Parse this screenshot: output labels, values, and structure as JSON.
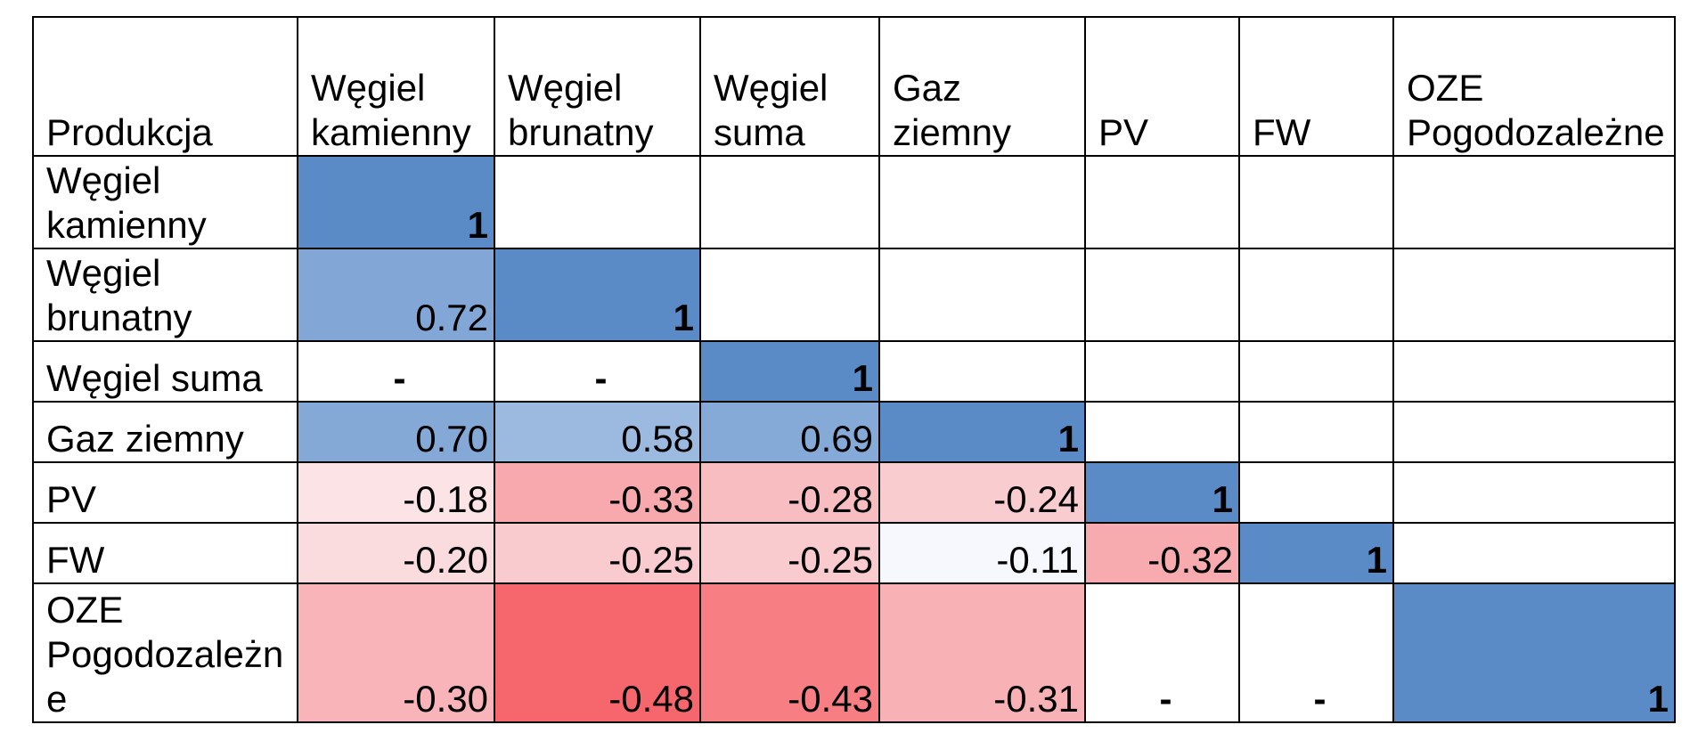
{
  "table": {
    "corner_label": "Produkcja",
    "columns": [
      "Węgiel kamienny",
      "Węgiel brunatny",
      "Węgiel suma",
      "Gaz ziemny",
      "PV",
      "FW",
      "OZE Pogodozależne"
    ],
    "rows": [
      {
        "label": "Węgiel kamienny",
        "cells": [
          {
            "text": "1",
            "bg": "#5b8bc7",
            "diag": true
          },
          {
            "text": "",
            "bg": "#ffffff"
          },
          {
            "text": "",
            "bg": "#ffffff"
          },
          {
            "text": "",
            "bg": "#ffffff"
          },
          {
            "text": "",
            "bg": "#ffffff"
          },
          {
            "text": "",
            "bg": "#ffffff"
          },
          {
            "text": "",
            "bg": "#ffffff"
          }
        ]
      },
      {
        "label": "Węgiel brunatny",
        "cells": [
          {
            "text": "0.72",
            "bg": "#82a7d6"
          },
          {
            "text": "1",
            "bg": "#5b8bc7",
            "diag": true
          },
          {
            "text": "",
            "bg": "#ffffff"
          },
          {
            "text": "",
            "bg": "#ffffff"
          },
          {
            "text": "",
            "bg": "#ffffff"
          },
          {
            "text": "",
            "bg": "#ffffff"
          },
          {
            "text": "",
            "bg": "#ffffff"
          }
        ]
      },
      {
        "label": "Węgiel suma",
        "cells": [
          {
            "text": "-",
            "bg": "#ffffff",
            "dash": true
          },
          {
            "text": "-",
            "bg": "#ffffff",
            "dash": true
          },
          {
            "text": "1",
            "bg": "#5b8bc7",
            "diag": true
          },
          {
            "text": "",
            "bg": "#ffffff"
          },
          {
            "text": "",
            "bg": "#ffffff"
          },
          {
            "text": "",
            "bg": "#ffffff"
          },
          {
            "text": "",
            "bg": "#ffffff"
          }
        ]
      },
      {
        "label": "Gaz ziemny",
        "cells": [
          {
            "text": "0.70",
            "bg": "#84a9d7"
          },
          {
            "text": "0.58",
            "bg": "#9cb9df"
          },
          {
            "text": "0.69",
            "bg": "#86aad7"
          },
          {
            "text": "1",
            "bg": "#5b8bc7",
            "diag": true
          },
          {
            "text": "",
            "bg": "#ffffff"
          },
          {
            "text": "",
            "bg": "#ffffff"
          },
          {
            "text": "",
            "bg": "#ffffff"
          }
        ]
      },
      {
        "label": "PV",
        "cells": [
          {
            "text": "-0.18",
            "bg": "#fbe3e6"
          },
          {
            "text": "-0.33",
            "bg": "#f7a9ad"
          },
          {
            "text": "-0.28",
            "bg": "#f8bdc0"
          },
          {
            "text": "-0.24",
            "bg": "#f9cdd0"
          },
          {
            "text": "1",
            "bg": "#5b8bc7",
            "diag": true
          },
          {
            "text": "",
            "bg": "#ffffff"
          },
          {
            "text": "",
            "bg": "#ffffff"
          }
        ]
      },
      {
        "label": "FW",
        "cells": [
          {
            "text": "-0.20",
            "bg": "#fadbde"
          },
          {
            "text": "-0.25",
            "bg": "#f9cbce"
          },
          {
            "text": "-0.25",
            "bg": "#f9cbce"
          },
          {
            "text": "-0.11",
            "bg": "#f7f8fd"
          },
          {
            "text": "-0.32",
            "bg": "#f7abaf"
          },
          {
            "text": "1",
            "bg": "#5b8bc7",
            "diag": true
          },
          {
            "text": "",
            "bg": "#ffffff"
          }
        ]
      },
      {
        "label": "OZE Pogodozależne",
        "cells": [
          {
            "text": "-0.30",
            "bg": "#f8b4b8"
          },
          {
            "text": "-0.48",
            "bg": "#f6676d"
          },
          {
            "text": "-0.43",
            "bg": "#f77f83"
          },
          {
            "text": "-0.31",
            "bg": "#f8b1b5"
          },
          {
            "text": "-",
            "bg": "#ffffff",
            "dash": true
          },
          {
            "text": "-",
            "bg": "#ffffff",
            "dash": true
          },
          {
            "text": "1",
            "bg": "#5b8bc7",
            "diag": true
          }
        ]
      }
    ]
  }
}
